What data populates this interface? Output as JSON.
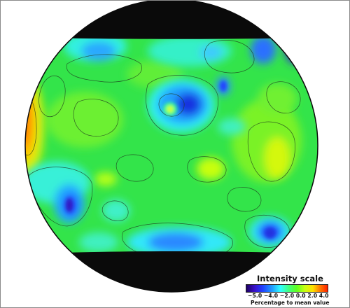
{
  "legend": {
    "title": "Intensity scale",
    "ticks_text": "−5.0 −4.0 −2.0 0.0 2.0 4.0",
    "caption": "Percentage to mean value",
    "colors": [
      "#1c0060",
      "#3a10c8",
      "#2040ff",
      "#20a0ff",
      "#30ffff",
      "#40ff80",
      "#60ff20",
      "#c8ff10",
      "#ffe000",
      "#ff8000",
      "#ff2000"
    ]
  },
  "colors": {
    "background": "#ffffff",
    "globe_base": "#33e44a",
    "no_data": "#0a0a0a",
    "contour": "#1f3a1f"
  }
}
